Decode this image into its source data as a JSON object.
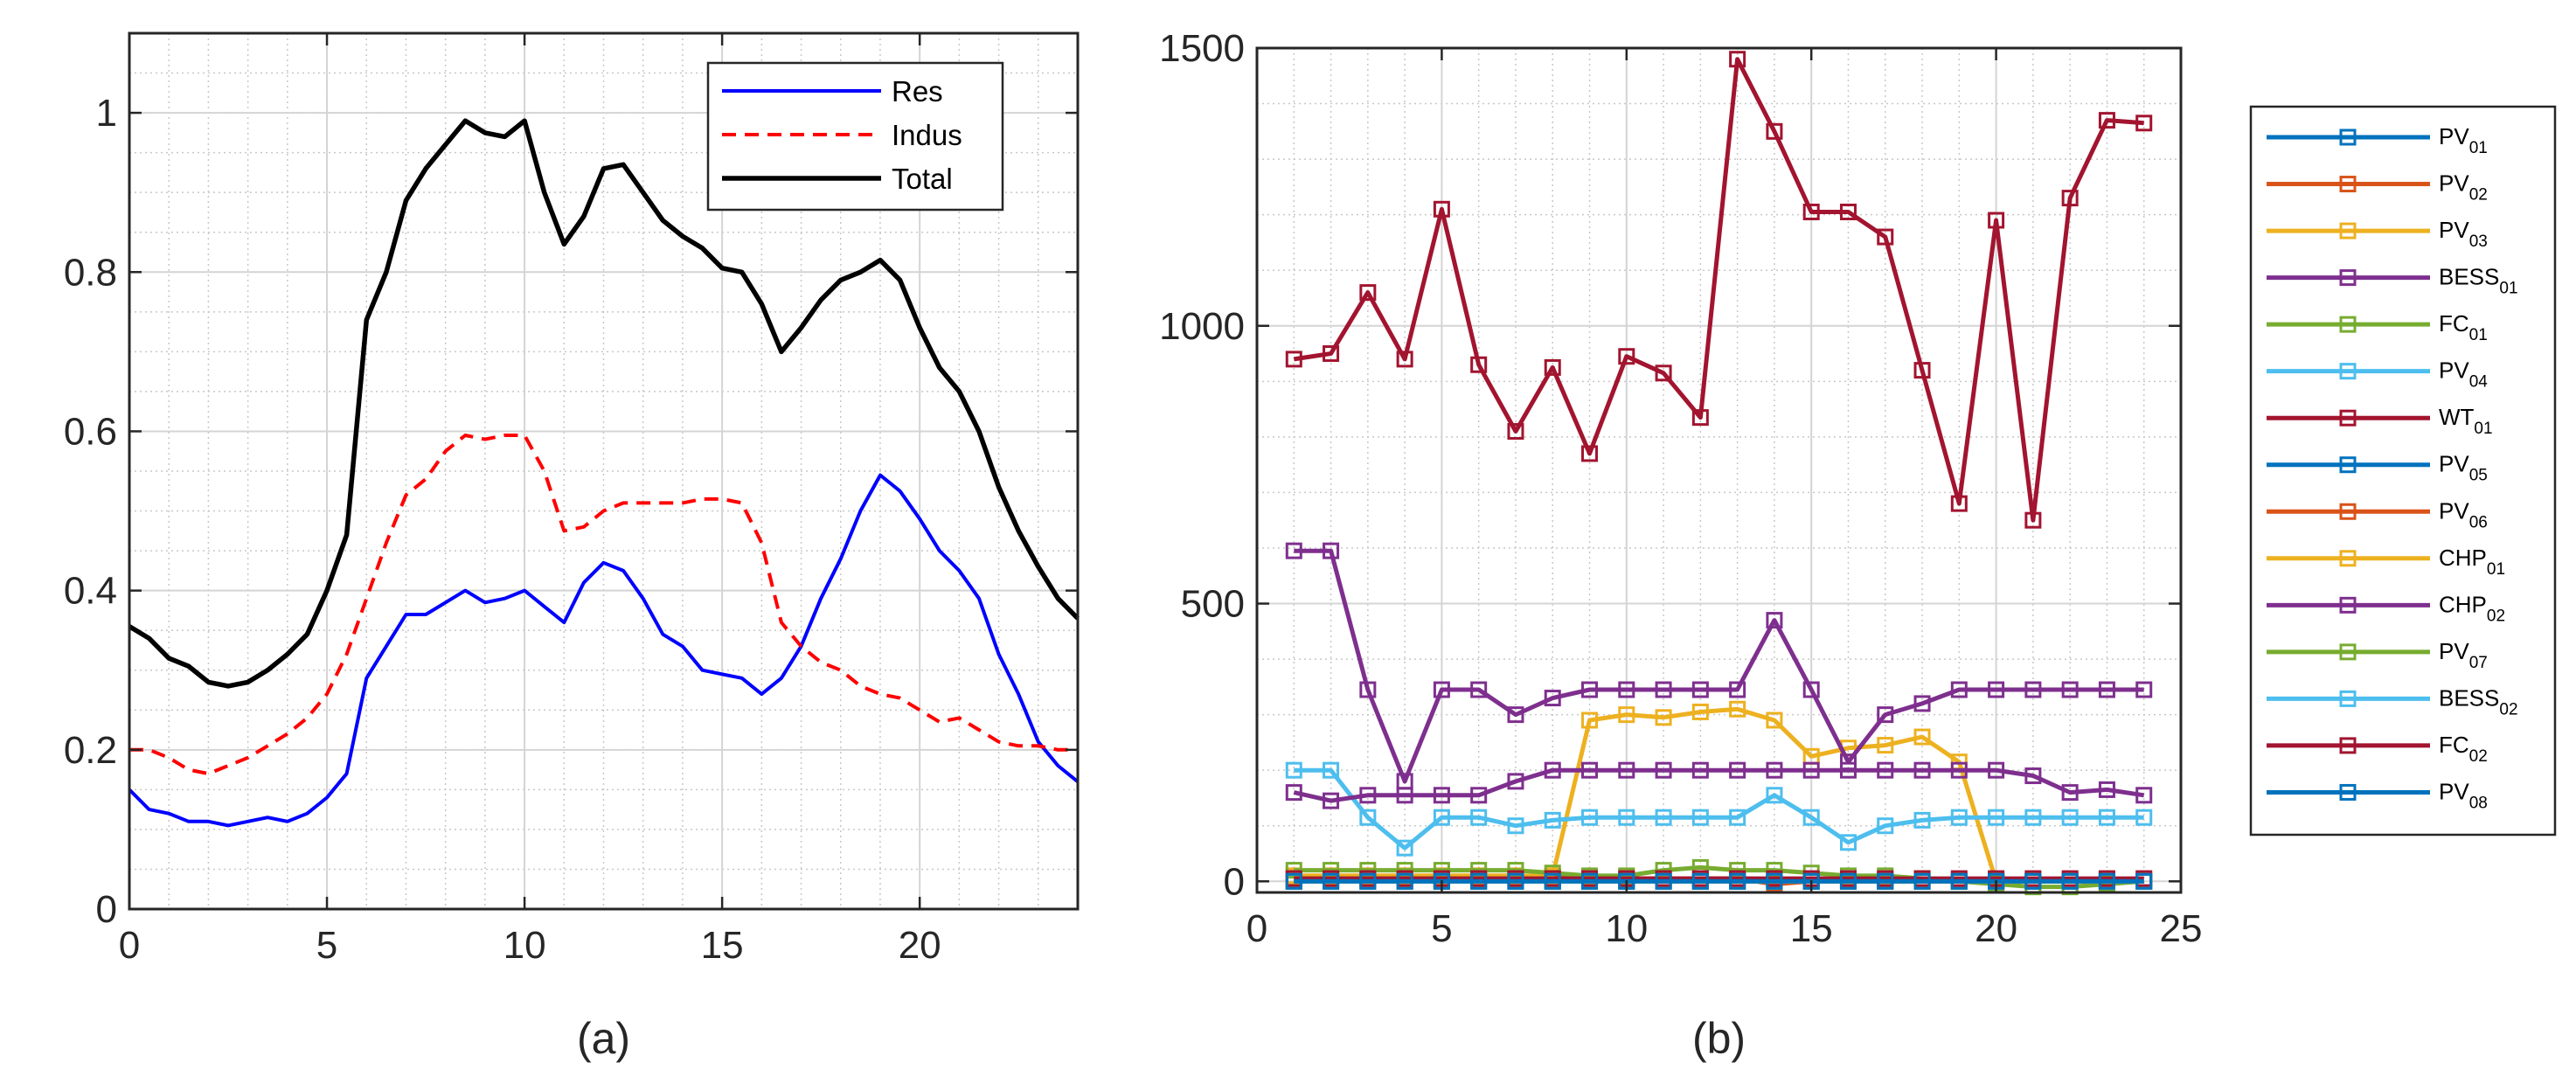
{
  "chart_data": [
    {
      "type": "line",
      "caption": "(a)",
      "xlim": [
        0,
        24
      ],
      "ylim": [
        0,
        1.1
      ],
      "x_ticks": [
        0,
        5,
        10,
        15,
        20
      ],
      "x_tick_labels": [
        "0",
        "5",
        "10",
        "15",
        "20"
      ],
      "y_ticks": [
        0,
        0.2,
        0.4,
        0.6,
        0.8,
        1
      ],
      "y_tick_labels": [
        "0",
        "0.2",
        "0.4",
        "0.6",
        "0.8",
        "1"
      ],
      "grid": true,
      "minor_grid": true,
      "legend_position": "top-right",
      "x": [
        0,
        0.5,
        1,
        1.5,
        2,
        2.5,
        3,
        3.5,
        4,
        4.5,
        5,
        5.5,
        6,
        6.5,
        7,
        7.5,
        8,
        8.5,
        9,
        9.5,
        10,
        10.5,
        11,
        11.5,
        12,
        12.5,
        13,
        13.5,
        14,
        14.5,
        15,
        15.5,
        16,
        16.5,
        17,
        17.5,
        18,
        18.5,
        19,
        19.5,
        20,
        20.5,
        21,
        21.5,
        22,
        22.5,
        23,
        23.5,
        24
      ],
      "series": [
        {
          "name": "Res",
          "color": "#0000ff",
          "dash": "solid",
          "values": [
            0.15,
            0.125,
            0.12,
            0.11,
            0.11,
            0.105,
            0.11,
            0.115,
            0.11,
            0.12,
            0.14,
            0.17,
            0.29,
            0.33,
            0.37,
            0.37,
            0.385,
            0.4,
            0.385,
            0.39,
            0.4,
            0.38,
            0.36,
            0.41,
            0.435,
            0.425,
            0.39,
            0.345,
            0.33,
            0.3,
            0.295,
            0.29,
            0.27,
            0.29,
            0.33,
            0.39,
            0.44,
            0.5,
            0.545,
            0.525,
            0.49,
            0.45,
            0.425,
            0.39,
            0.32,
            0.27,
            0.21,
            0.18,
            0.16
          ]
        },
        {
          "name": "Indus",
          "color": "#ff0000",
          "dash": "dashed",
          "values": [
            0.2,
            0.2,
            0.19,
            0.175,
            0.17,
            0.18,
            0.19,
            0.205,
            0.22,
            0.24,
            0.27,
            0.32,
            0.39,
            0.46,
            0.52,
            0.54,
            0.575,
            0.595,
            0.59,
            0.595,
            0.595,
            0.55,
            0.475,
            0.48,
            0.5,
            0.51,
            0.51,
            0.51,
            0.51,
            0.515,
            0.515,
            0.51,
            0.46,
            0.36,
            0.33,
            0.31,
            0.3,
            0.28,
            0.27,
            0.265,
            0.25,
            0.235,
            0.24,
            0.225,
            0.21,
            0.205,
            0.205,
            0.2,
            0.2
          ]
        },
        {
          "name": "Total",
          "color": "#000000",
          "dash": "solid",
          "values": [
            0.355,
            0.34,
            0.315,
            0.305,
            0.285,
            0.28,
            0.285,
            0.3,
            0.32,
            0.345,
            0.4,
            0.47,
            0.74,
            0.8,
            0.89,
            0.93,
            0.96,
            0.99,
            0.975,
            0.97,
            0.99,
            0.9,
            0.835,
            0.87,
            0.93,
            0.935,
            0.9,
            0.865,
            0.845,
            0.83,
            0.805,
            0.8,
            0.76,
            0.7,
            0.73,
            0.765,
            0.79,
            0.8,
            0.815,
            0.79,
            0.73,
            0.68,
            0.65,
            0.6,
            0.53,
            0.475,
            0.43,
            0.39,
            0.365
          ]
        }
      ]
    },
    {
      "type": "line",
      "caption": "(b)",
      "xlim": [
        0,
        25
      ],
      "ylim": [
        -20,
        1500
      ],
      "x_ticks": [
        0,
        5,
        10,
        15,
        20,
        25
      ],
      "x_tick_labels": [
        "0",
        "5",
        "10",
        "15",
        "20",
        "25"
      ],
      "y_ticks": [
        0,
        500,
        1000,
        1500
      ],
      "y_tick_labels": [
        "0",
        "500",
        "1000",
        "1500"
      ],
      "grid": true,
      "minor_grid": true,
      "legend_position": "outside-right",
      "marker": "square",
      "x": [
        1,
        2,
        3,
        4,
        5,
        6,
        7,
        8,
        9,
        10,
        11,
        12,
        13,
        14,
        15,
        16,
        17,
        18,
        19,
        20,
        21,
        22,
        23,
        24
      ],
      "series": [
        {
          "name": "PV",
          "sub": "01",
          "color": "#0072bd",
          "values": [
            0,
            0,
            0,
            0,
            0,
            0,
            0,
            0,
            0,
            2,
            3,
            5,
            5,
            4,
            3,
            2,
            1,
            0,
            0,
            0,
            0,
            0,
            0,
            0
          ]
        },
        {
          "name": "PV",
          "sub": "02",
          "color": "#d95319",
          "values": [
            10,
            10,
            10,
            10,
            10,
            10,
            10,
            8,
            5,
            5,
            5,
            5,
            5,
            -5,
            0,
            0,
            0,
            0,
            0,
            0,
            0,
            0,
            0,
            0
          ]
        },
        {
          "name": "PV",
          "sub": "03",
          "color": "#edb120",
          "values": [
            10,
            10,
            10,
            10,
            10,
            10,
            10,
            10,
            290,
            300,
            295,
            305,
            310,
            290,
            225,
            240,
            245,
            260,
            215,
            0,
            0,
            0,
            0,
            0
          ]
        },
        {
          "name": "BESS",
          "sub": "01",
          "color": "#7e2f8e",
          "values": [
            595,
            595,
            345,
            180,
            345,
            345,
            300,
            330,
            345,
            345,
            345,
            345,
            345,
            470,
            345,
            215,
            300,
            320,
            345,
            345,
            345,
            345,
            345,
            345
          ]
        },
        {
          "name": "FC",
          "sub": "01",
          "color": "#77ac30",
          "values": [
            20,
            20,
            20,
            20,
            20,
            20,
            20,
            15,
            10,
            10,
            20,
            25,
            20,
            20,
            15,
            10,
            10,
            5,
            0,
            -5,
            -10,
            -10,
            -5,
            0
          ]
        },
        {
          "name": "PV",
          "sub": "04",
          "color": "#4dbeee",
          "values": [
            200,
            200,
            115,
            60,
            115,
            115,
            100,
            110,
            115,
            115,
            115,
            115,
            115,
            155,
            115,
            70,
            100,
            110,
            115,
            115,
            115,
            115,
            115,
            115
          ]
        },
        {
          "name": "WT",
          "sub": "01",
          "color": "#a2142f",
          "values": [
            940,
            950,
            1060,
            940,
            1210,
            930,
            810,
            925,
            770,
            945,
            915,
            835,
            1480,
            1350,
            1205,
            1205,
            1160,
            920,
            680,
            1190,
            650,
            1230,
            1370,
            1365
          ]
        },
        {
          "name": "PV",
          "sub": "05",
          "color": "#0072bd",
          "values": [
            0,
            0,
            0,
            0,
            0,
            0,
            0,
            0,
            0,
            0,
            0,
            0,
            0,
            0,
            0,
            0,
            0,
            0,
            0,
            0,
            0,
            0,
            0,
            0
          ]
        },
        {
          "name": "PV",
          "sub": "06",
          "color": "#d95319",
          "values": [
            5,
            5,
            5,
            5,
            5,
            5,
            5,
            5,
            0,
            0,
            0,
            0,
            0,
            0,
            0,
            0,
            0,
            0,
            0,
            0,
            0,
            0,
            0,
            0
          ]
        },
        {
          "name": "CHP",
          "sub": "01",
          "color": "#edb120",
          "values": [
            0,
            0,
            0,
            0,
            0,
            0,
            0,
            0,
            0,
            0,
            0,
            0,
            0,
            0,
            0,
            0,
            0,
            0,
            0,
            0,
            0,
            0,
            0,
            0
          ]
        },
        {
          "name": "CHP",
          "sub": "02",
          "color": "#7e2f8e",
          "values": [
            160,
            145,
            155,
            155,
            155,
            155,
            180,
            200,
            200,
            200,
            200,
            200,
            200,
            200,
            200,
            200,
            200,
            200,
            200,
            200,
            190,
            160,
            165,
            155
          ]
        },
        {
          "name": "PV",
          "sub": "07",
          "color": "#77ac30",
          "values": [
            5,
            5,
            5,
            5,
            5,
            5,
            5,
            5,
            0,
            0,
            0,
            0,
            0,
            0,
            0,
            0,
            0,
            0,
            0,
            0,
            0,
            0,
            0,
            0
          ]
        },
        {
          "name": "BESS",
          "sub": "02",
          "color": "#4dbeee",
          "values": [
            0,
            0,
            0,
            0,
            0,
            0,
            0,
            0,
            0,
            0,
            0,
            0,
            0,
            0,
            0,
            0,
            0,
            0,
            0,
            0,
            0,
            0,
            0,
            0
          ]
        },
        {
          "name": "FC",
          "sub": "02",
          "color": "#a2142f",
          "values": [
            5,
            5,
            5,
            5,
            5,
            5,
            5,
            5,
            5,
            5,
            5,
            5,
            5,
            5,
            5,
            5,
            5,
            5,
            5,
            5,
            5,
            5,
            5,
            5
          ]
        },
        {
          "name": "PV",
          "sub": "08",
          "color": "#0072bd",
          "values": [
            0,
            0,
            0,
            0,
            0,
            0,
            0,
            0,
            0,
            0,
            0,
            0,
            0,
            0,
            0,
            0,
            0,
            0,
            0,
            0,
            0,
            0,
            0,
            0
          ]
        }
      ]
    }
  ]
}
